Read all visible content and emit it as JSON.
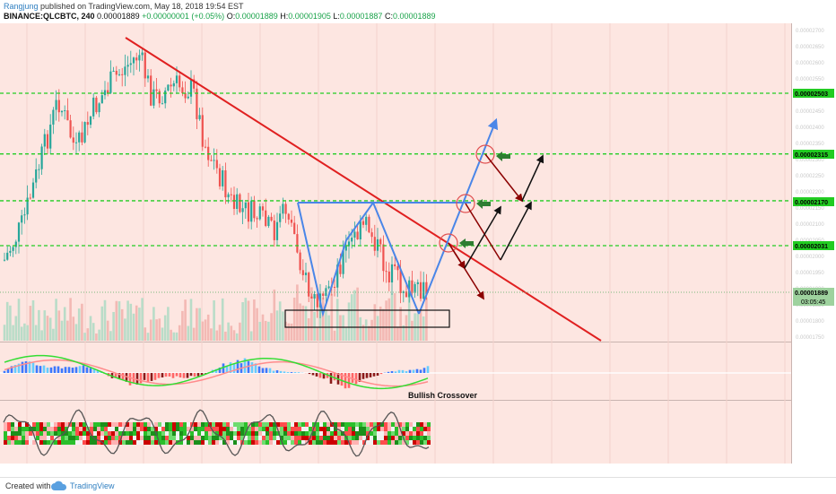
{
  "header": {
    "author": "Rangjung",
    "published": "published on TradingView.com, May 18, 2018 19:54 EST",
    "symbol": "BINANCE:QLCBTC, 240",
    "last": "0.00001889",
    "change": "+0.00000001 (+0.05%)",
    "o_label": "O:",
    "o_value": "0.00001889",
    "h_label": "H:",
    "h_value": "0.00001905",
    "l_label": "L:",
    "l_value": "0.00001887",
    "c_label": "C:",
    "c_value": "0.00001889"
  },
  "footer": {
    "created_with": "Created with",
    "brand": "TradingView"
  },
  "chart_data": {
    "type": "candlestick",
    "price_axis_range": [
      1.7e-05,
      2.83e-05
    ],
    "levels": [
      {
        "label": "0.00002503",
        "value": 2.503e-05,
        "color": "#22cc22"
      },
      {
        "label": "0.00002315",
        "value": 2.315e-05,
        "color": "#22cc22"
      },
      {
        "label": "0.00002170",
        "value": 2.17e-05,
        "color": "#22cc22"
      },
      {
        "label": "0.00002031",
        "value": 2.031e-05,
        "color": "#22cc22"
      }
    ],
    "current_price": {
      "label": "0.00001889",
      "value": 1.889e-05,
      "countdown": "03:05:45"
    },
    "annotations": [
      {
        "text": "Bullish Crossover"
      }
    ],
    "colors": {
      "background": "#fde6e1",
      "trendline": "#e02020",
      "pattern": "#4a86e8",
      "level": "#22cc22",
      "up": "#26a69a",
      "down": "#ef5350"
    }
  }
}
